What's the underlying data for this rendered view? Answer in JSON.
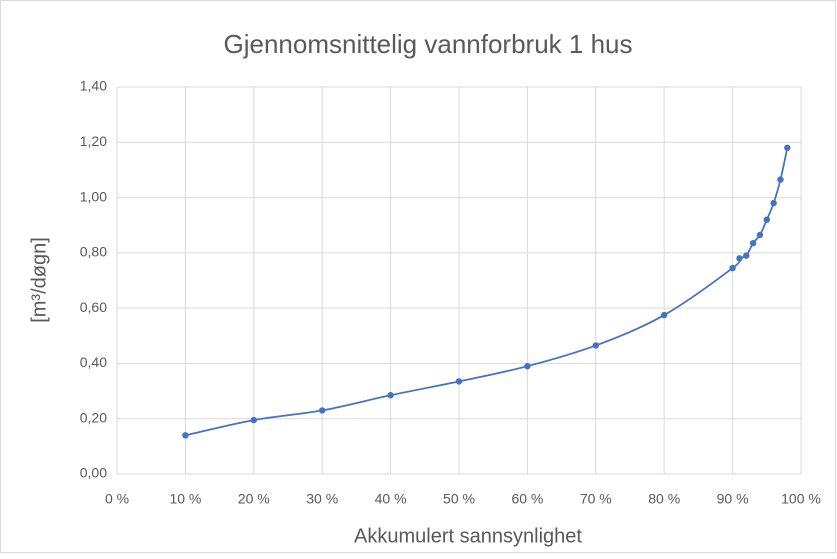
{
  "chart_data": {
    "type": "scatter",
    "title": "Gjennomsnittelig vannforbruk 1 hus",
    "x_label": "Akkumulert sannsynlighet",
    "y_label": "[m³/døgn]",
    "series": [
      {
        "color": "#4472c4",
        "x": [
          10,
          20,
          30,
          40,
          50,
          60,
          70,
          80,
          90,
          91,
          92,
          93,
          94,
          95,
          96,
          97,
          98
        ],
        "values": [
          0.14,
          0.195,
          0.23,
          0.285,
          0.335,
          0.39,
          0.465,
          0.575,
          0.745,
          0.78,
          0.79,
          0.835,
          0.865,
          0.92,
          0.98,
          1.065,
          1.18
        ]
      }
    ],
    "smooth": true,
    "markers": true,
    "grid": true,
    "xlim": [
      0,
      100
    ],
    "xticks": [
      {
        "value": 0,
        "label": "0 %"
      },
      {
        "value": 10,
        "label": "10 %"
      },
      {
        "value": 20,
        "label": "20 %"
      },
      {
        "value": 30,
        "label": "30 %"
      },
      {
        "value": 40,
        "label": "40 %"
      },
      {
        "value": 50,
        "label": "50 %"
      },
      {
        "value": 60,
        "label": "60 %"
      },
      {
        "value": 70,
        "label": "70 %"
      },
      {
        "value": 80,
        "label": "80 %"
      },
      {
        "value": 90,
        "label": "90 %"
      },
      {
        "value": 100,
        "label": "100 %"
      }
    ],
    "ylim": [
      0,
      1.4
    ],
    "yticks": [
      {
        "value": 0,
        "label": "0,00"
      },
      {
        "value": 0.2,
        "label": "0,20"
      },
      {
        "value": 0.4,
        "label": "0,40"
      },
      {
        "value": 0.6,
        "label": "0,60"
      },
      {
        "value": 0.8,
        "label": "0,80"
      },
      {
        "value": 1.0,
        "label": "1,00"
      },
      {
        "value": 1.2,
        "label": "1,20"
      },
      {
        "value": 1.4,
        "label": "1,40"
      }
    ]
  }
}
